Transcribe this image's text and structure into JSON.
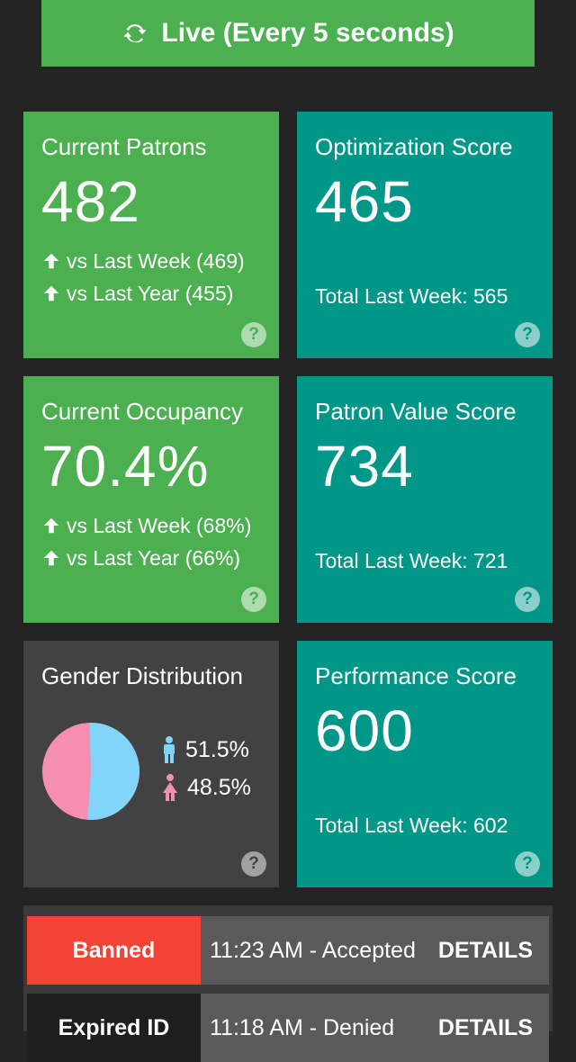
{
  "live_button": {
    "label": "Live (Every 5 seconds)"
  },
  "colors": {
    "green": "#4caf50",
    "teal": "#009688",
    "grey": "#424242",
    "red": "#f44336",
    "male": "#81d4fa",
    "female": "#f48fb1"
  },
  "patrons": {
    "title": "Current Patrons",
    "value": "482",
    "vs_week": "vs Last Week (469)",
    "vs_year": "vs Last Year (455)"
  },
  "optimization": {
    "title": "Optimization Score",
    "value": "465",
    "total": "Total Last Week: 565"
  },
  "occupancy": {
    "title": "Current Occupancy",
    "value": "70.4%",
    "vs_week": "vs Last Week (68%)",
    "vs_year": "vs Last Year (66%)"
  },
  "patron_value": {
    "title": "Patron Value Score",
    "value": "734",
    "total": "Total Last Week: 721"
  },
  "gender": {
    "title": "Gender Distribution",
    "male": "51.5%",
    "female": "48.5%",
    "male_fraction": 0.515
  },
  "performance": {
    "title": "Performance Score",
    "value": "600",
    "total": "Total Last Week: 602"
  },
  "help_glyph": "?",
  "log": {
    "rows": [
      {
        "status": "Banned",
        "text": "11:23 AM - Accepted",
        "action": "DETAILS"
      },
      {
        "status": "Expired ID",
        "text": "11:18 AM - Denied",
        "action": "DETAILS"
      }
    ]
  }
}
